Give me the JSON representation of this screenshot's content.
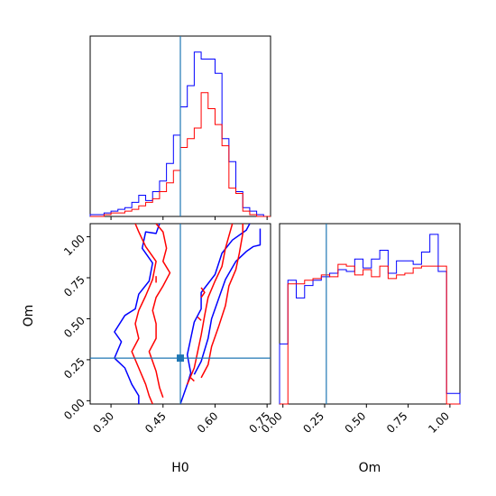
{
  "colors": {
    "blue": "#0000ff",
    "red": "#ff0000",
    "truth": "#1f77b4"
  },
  "chart_data": {
    "type": "corner",
    "parameters": [
      "H0",
      "Om"
    ],
    "truths": {
      "H0": 0.5,
      "Om": 0.26
    },
    "series_colors": [
      "blue",
      "red"
    ],
    "panels": [
      {
        "id": "hist-H0",
        "type": "histogram",
        "xlim": [
          0.24,
          0.76
        ],
        "x_ticks": [
          0.3,
          0.45,
          0.6,
          0.75
        ],
        "x_tick_labels_shown": false,
        "bin_edges": [
          0.24,
          0.26,
          0.28,
          0.3,
          0.32,
          0.34,
          0.36,
          0.38,
          0.4,
          0.42,
          0.44,
          0.46,
          0.48,
          0.5,
          0.52,
          0.54,
          0.56,
          0.58,
          0.6,
          0.62,
          0.64,
          0.66,
          0.68,
          0.7,
          0.72,
          0.74,
          0.76
        ],
        "series": [
          {
            "color": "blue",
            "values": [
              0.01,
              0.01,
              0.02,
              0.03,
              0.04,
              0.05,
              0.08,
              0.12,
              0.09,
              0.14,
              0.2,
              0.3,
              0.46,
              0.62,
              0.74,
              0.93,
              0.89,
              0.89,
              0.81,
              0.44,
              0.31,
              0.14,
              0.05,
              0.03,
              0.01,
              0.0
            ]
          },
          {
            "color": "red",
            "values": [
              0.0,
              0.0,
              0.01,
              0.02,
              0.02,
              0.03,
              0.04,
              0.06,
              0.08,
              0.1,
              0.14,
              0.19,
              0.26,
              0.39,
              0.44,
              0.5,
              0.7,
              0.61,
              0.52,
              0.4,
              0.16,
              0.13,
              0.03,
              0.01,
              0.0,
              0.0
            ]
          }
        ]
      },
      {
        "id": "scatter-H0-Om",
        "type": "contour",
        "xlim": [
          0.24,
          0.76
        ],
        "ylim": [
          -0.02,
          1.08
        ],
        "x_ticks": [
          0.3,
          0.45,
          0.6,
          0.75
        ],
        "x_tick_labels": [
          "0.30",
          "0.45",
          "0.60",
          "0.75"
        ],
        "y_ticks": [
          0.0,
          0.25,
          0.5,
          0.75,
          1.0
        ],
        "y_tick_labels": [
          "0.00",
          "0.25",
          "0.50",
          "0.75",
          "1.00"
        ],
        "xlabel": "H0",
        "ylabel": "Om",
        "contours": [
          {
            "color": "blue",
            "points": [
              [
                0.44,
                1.08
              ],
              [
                0.43,
                1.02
              ],
              [
                0.4,
                1.03
              ],
              [
                0.39,
                0.93
              ],
              [
                0.42,
                0.84
              ],
              [
                0.41,
                0.73
              ],
              [
                0.38,
                0.65
              ],
              [
                0.37,
                0.56
              ],
              [
                0.34,
                0.52
              ],
              [
                0.31,
                0.42
              ],
              [
                0.33,
                0.36
              ],
              [
                0.31,
                0.26
              ],
              [
                0.34,
                0.2
              ],
              [
                0.36,
                0.1
              ],
              [
                0.38,
                0.03
              ],
              [
                0.38,
                -0.02
              ]
            ]
          },
          {
            "color": "blue",
            "points": [
              [
                0.5,
                -0.02
              ],
              [
                0.52,
                0.1
              ],
              [
                0.53,
                0.17
              ],
              [
                0.52,
                0.28
              ],
              [
                0.53,
                0.38
              ],
              [
                0.54,
                0.48
              ],
              [
                0.56,
                0.56
              ],
              [
                0.56,
                0.66
              ],
              [
                0.6,
                0.77
              ],
              [
                0.62,
                0.9
              ],
              [
                0.65,
                0.98
              ],
              [
                0.69,
                1.04
              ],
              [
                0.7,
                1.08
              ]
            ]
          },
          {
            "color": "blue",
            "points": [
              [
                0.54,
                0.16
              ],
              [
                0.56,
                0.24
              ],
              [
                0.58,
                0.38
              ],
              [
                0.59,
                0.5
              ],
              [
                0.61,
                0.62
              ],
              [
                0.63,
                0.74
              ],
              [
                0.66,
                0.85
              ],
              [
                0.69,
                0.91
              ],
              [
                0.71,
                0.94
              ],
              [
                0.73,
                0.95
              ],
              [
                0.73,
                1.05
              ]
            ]
          },
          {
            "color": "red",
            "points": [
              [
                0.37,
                1.08
              ],
              [
                0.38,
                1.03
              ],
              [
                0.4,
                0.94
              ],
              [
                0.43,
                0.85
              ],
              [
                0.42,
                0.74
              ],
              [
                0.4,
                0.64
              ],
              [
                0.38,
                0.55
              ],
              [
                0.37,
                0.47
              ],
              [
                0.38,
                0.38
              ],
              [
                0.36,
                0.3
              ],
              [
                0.38,
                0.2
              ],
              [
                0.4,
                0.1
              ],
              [
                0.41,
                0.03
              ],
              [
                0.42,
                -0.02
              ]
            ]
          },
          {
            "color": "red",
            "points": [
              [
                0.43,
                1.08
              ],
              [
                0.45,
                1.03
              ],
              [
                0.46,
                0.93
              ],
              [
                0.45,
                0.85
              ],
              [
                0.47,
                0.78
              ],
              [
                0.45,
                0.7
              ],
              [
                0.43,
                0.63
              ],
              [
                0.42,
                0.55
              ],
              [
                0.43,
                0.47
              ],
              [
                0.43,
                0.38
              ],
              [
                0.41,
                0.3
              ],
              [
                0.43,
                0.18
              ],
              [
                0.44,
                0.08
              ],
              [
                0.45,
                0.02
              ]
            ]
          },
          {
            "color": "red",
            "points": [
              [
                0.52,
                0.1
              ],
              [
                0.54,
                0.2
              ],
              [
                0.55,
                0.3
              ],
              [
                0.56,
                0.4
              ],
              [
                0.57,
                0.52
              ],
              [
                0.58,
                0.63
              ],
              [
                0.6,
                0.73
              ],
              [
                0.62,
                0.82
              ],
              [
                0.63,
                0.93
              ],
              [
                0.65,
                1.08
              ]
            ]
          },
          {
            "color": "red",
            "points": [
              [
                0.56,
                0.14
              ],
              [
                0.58,
                0.22
              ],
              [
                0.59,
                0.33
              ],
              [
                0.61,
                0.45
              ],
              [
                0.63,
                0.58
              ],
              [
                0.64,
                0.7
              ],
              [
                0.66,
                0.8
              ],
              [
                0.67,
                0.9
              ],
              [
                0.68,
                1.02
              ],
              [
                0.68,
                1.08
              ]
            ]
          },
          {
            "color": "red",
            "points": [
              [
                0.43,
                0.76
              ],
              [
                0.43,
                0.72
              ]
            ]
          },
          {
            "color": "red",
            "points": [
              [
                0.56,
                0.69
              ],
              [
                0.57,
                0.66
              ],
              [
                0.56,
                0.63
              ]
            ]
          },
          {
            "color": "red",
            "points": [
              [
                0.55,
                0.51
              ],
              [
                0.56,
                0.49
              ]
            ]
          },
          {
            "color": "red",
            "points": [
              [
                0.53,
                0.14
              ],
              [
                0.54,
                0.12
              ]
            ]
          }
        ]
      },
      {
        "id": "hist-Om",
        "type": "histogram",
        "xlim": [
          -0.02,
          1.06
        ],
        "x_ticks": [
          0.0,
          0.25,
          0.5,
          0.75,
          1.0
        ],
        "x_tick_labels": [
          "0.00",
          "0.25",
          "0.50",
          "0.75",
          "1.00"
        ],
        "xlabel": "Om",
        "bin_edges": [
          -0.02,
          0.03,
          0.08,
          0.13,
          0.18,
          0.23,
          0.28,
          0.33,
          0.38,
          0.43,
          0.48,
          0.53,
          0.58,
          0.63,
          0.68,
          0.73,
          0.78,
          0.83,
          0.88,
          0.93,
          0.98,
          1.01,
          1.06
        ],
        "series": [
          {
            "color": "blue",
            "values": [
              0.34,
              0.7,
              0.6,
              0.67,
              0.7,
              0.72,
              0.74,
              0.76,
              0.75,
              0.82,
              0.77,
              0.82,
              0.87,
              0.74,
              0.81,
              0.81,
              0.79,
              0.86,
              0.96,
              0.75,
              0.06,
              0.06
            ]
          },
          {
            "color": "red",
            "values": [
              0.0,
              0.68,
              0.68,
              0.7,
              0.71,
              0.73,
              0.72,
              0.79,
              0.78,
              0.73,
              0.76,
              0.72,
              0.78,
              0.71,
              0.73,
              0.74,
              0.77,
              0.78,
              0.78,
              0.78,
              0.0,
              0.0
            ]
          }
        ]
      }
    ]
  }
}
